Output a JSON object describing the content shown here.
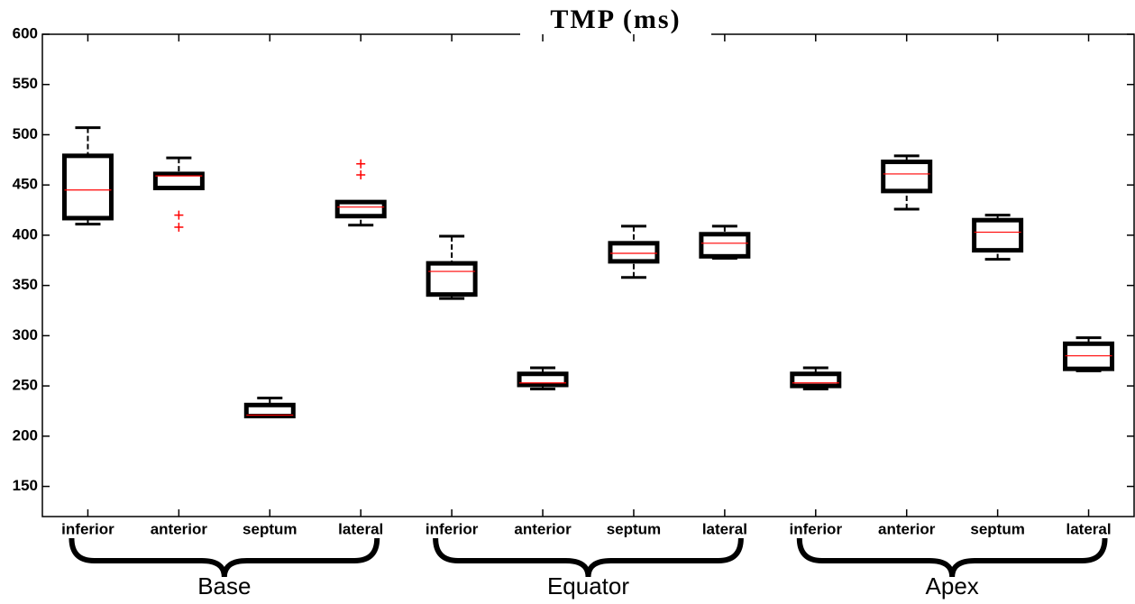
{
  "chart_data": {
    "type": "box",
    "title": "TMP (ms)",
    "categories": [
      "inferior",
      "anterior",
      "septum",
      "lateral",
      "inferior",
      "anterior",
      "septum",
      "lateral",
      "inferior",
      "anterior",
      "septum",
      "lateral"
    ],
    "groups": [
      "Base",
      "Equator",
      "Apex"
    ],
    "boxes": [
      {
        "min": 411,
        "q1": 417,
        "median": 445,
        "q3": 479,
        "max": 507,
        "outliers": []
      },
      {
        "min": 447,
        "q1": 447,
        "median": 459,
        "q3": 461,
        "max": 477,
        "outliers": [
          420,
          408
        ]
      },
      {
        "min": 220,
        "q1": 220,
        "median": 221,
        "q3": 231,
        "max": 238,
        "outliers": []
      },
      {
        "min": 410,
        "q1": 419,
        "median": 428,
        "q3": 433,
        "max": 433,
        "outliers": [
          471,
          460
        ]
      },
      {
        "min": 337,
        "q1": 341,
        "median": 364,
        "q3": 372,
        "max": 399,
        "outliers": []
      },
      {
        "min": 247,
        "q1": 251,
        "median": 253,
        "q3": 262,
        "max": 268,
        "outliers": []
      },
      {
        "min": 358,
        "q1": 374,
        "median": 382,
        "q3": 392,
        "max": 409,
        "outliers": []
      },
      {
        "min": 377,
        "q1": 379,
        "median": 392,
        "q3": 401,
        "max": 409,
        "outliers": []
      },
      {
        "min": 247,
        "q1": 250,
        "median": 253,
        "q3": 262,
        "max": 268,
        "outliers": []
      },
      {
        "min": 426,
        "q1": 444,
        "median": 461,
        "q3": 473,
        "max": 479,
        "outliers": []
      },
      {
        "min": 376,
        "q1": 385,
        "median": 403,
        "q3": 415,
        "max": 420,
        "outliers": []
      },
      {
        "min": 265,
        "q1": 267,
        "median": 280,
        "q3": 292,
        "max": 298,
        "outliers": []
      }
    ],
    "box_color": "#000000",
    "median_color": "#ff0000",
    "outlier_color": "#ff0000",
    "ylim": [
      120,
      600
    ],
    "yticks": [
      150,
      200,
      250,
      300,
      350,
      400,
      450,
      500,
      550,
      600
    ]
  }
}
